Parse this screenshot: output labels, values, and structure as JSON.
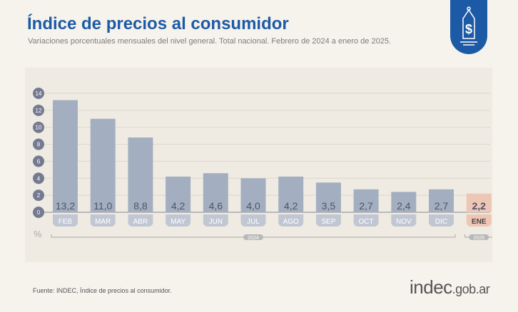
{
  "header": {
    "title": "Índice de precios al consumidor",
    "subtitle": "Variaciones porcentuales mensuales del nivel general. Total nacional. Febrero de 2024 a enero de 2025."
  },
  "logo_icon": "price-tag-dollar-icon",
  "footer": {
    "source": "Fuente: INDEC, Índice de precios al consumidor.",
    "brand_main": "indec",
    "brand_suffix": ".gob.ar"
  },
  "chart_data": {
    "type": "bar",
    "title": "Índice de precios al consumidor",
    "ylabel": "%",
    "ylim": [
      0,
      14
    ],
    "yticks": [
      0,
      2,
      4,
      6,
      8,
      10,
      12,
      14
    ],
    "grid": true,
    "categories": [
      "FEB",
      "MAR",
      "ABR",
      "MAY",
      "JUN",
      "JUL",
      "AGO",
      "SEP",
      "OCT",
      "NOV",
      "DIC",
      "ENE"
    ],
    "data_labels": [
      "13,2",
      "11,0",
      "8,8",
      "4,2",
      "4,6",
      "4,0",
      "4,2",
      "3,5",
      "2,7",
      "2,4",
      "2,7",
      "2,2"
    ],
    "values": [
      13.2,
      11.0,
      8.8,
      4.2,
      4.6,
      4.0,
      4.2,
      3.5,
      2.7,
      2.4,
      2.7,
      2.2
    ],
    "year_groups": [
      {
        "label": "2024",
        "count": 11
      },
      {
        "label": "2025",
        "count": 1
      }
    ],
    "colors": {
      "bar": "#a3afc1",
      "highlight": "#eec6b5",
      "tick_badge": "#757a93",
      "title": "#1d5aa6"
    }
  }
}
